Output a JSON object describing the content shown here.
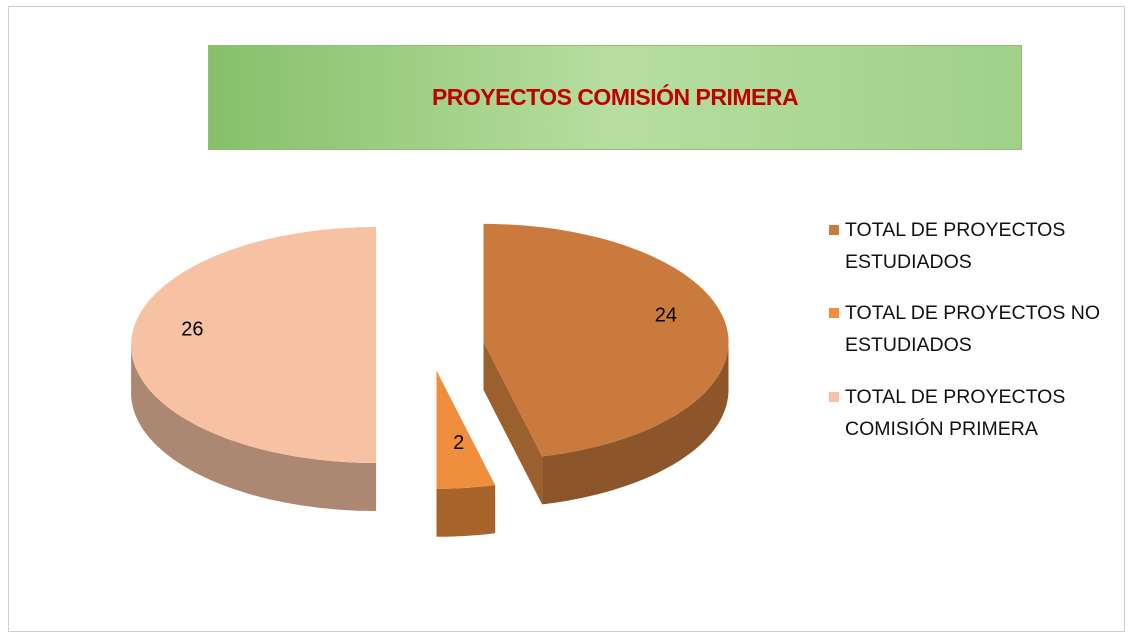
{
  "chart_data": {
    "type": "pie",
    "title": "PROYECTOS COMISIÓN PRIMERA",
    "categories": [
      "TOTAL DE PROYECTOS ESTUDIADOS",
      "TOTAL DE PROYECTOS NO ESTUDIADOS",
      "TOTAL DE PROYECTOS COMISIÓN PRIMERA"
    ],
    "values": [
      24,
      2,
      26
    ],
    "colors": [
      "#c97a3c",
      "#ef8f3e",
      "#f6c2a3"
    ],
    "legend": "right"
  }
}
